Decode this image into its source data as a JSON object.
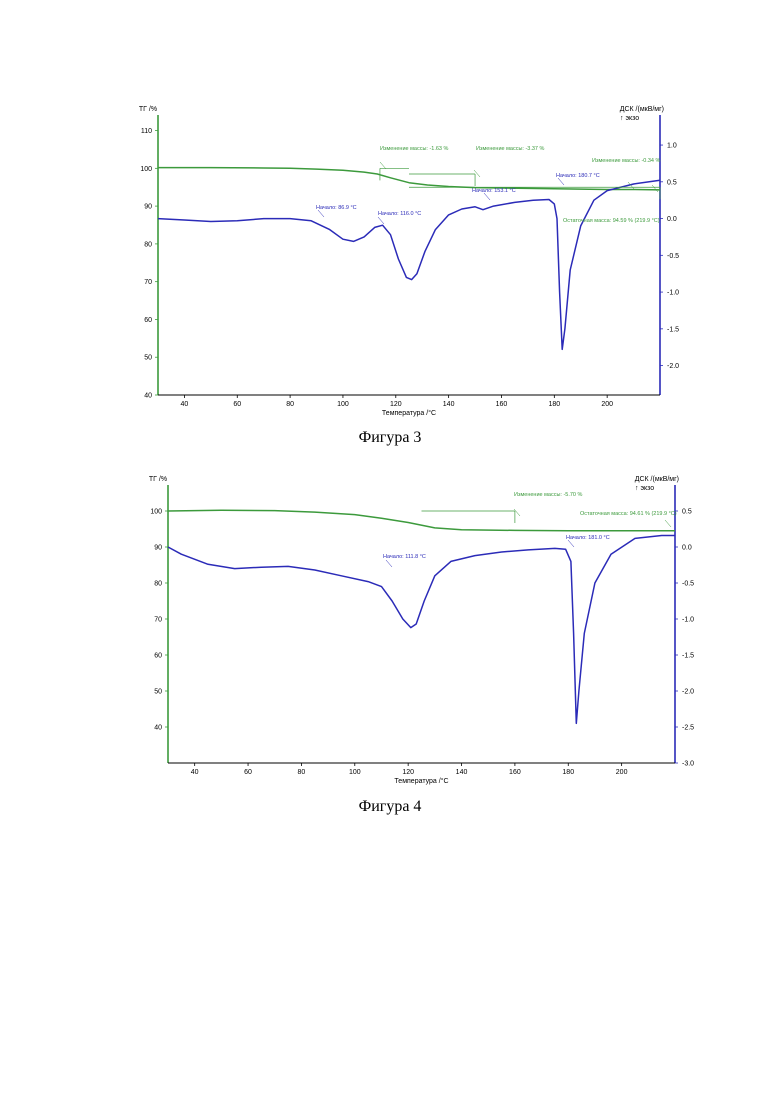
{
  "figures": [
    {
      "caption": "Фигура 3",
      "chart_data": {
        "type": "line",
        "title": "",
        "xlabel": "Температура /°C",
        "ylabel_left": "ТГ /%",
        "ylabel_right": "ДСК /(мкВ/мг)",
        "exo_label": "↑ экзо",
        "xlim": [
          30,
          220
        ],
        "ylim_left": [
          40,
          112
        ],
        "ylim_right": [
          -2.4,
          1.3
        ],
        "xticks": [
          40,
          60,
          80,
          100,
          120,
          140,
          160,
          180,
          200
        ],
        "yticks_left": [
          40,
          50,
          60,
          70,
          80,
          90,
          100,
          110
        ],
        "yticks_right": [
          -2.0,
          -1.5,
          -1.0,
          -0.5,
          0.0,
          0.5,
          1.0
        ],
        "grid": false,
        "tg_color": "#3c9a3c",
        "dsc_color": "#2b2bb8",
        "series": [
          {
            "name": "",
            "axis": "left",
            "points": [
              [
                30,
                100.2
              ],
              [
                50,
                100.2
              ],
              [
                70,
                100.1
              ],
              [
                80,
                100.0
              ],
              [
                90,
                99.8
              ],
              [
                100,
                99.5
              ],
              [
                108,
                99.0
              ],
              [
                113,
                98.5
              ],
              [
                118,
                97.5
              ],
              [
                125,
                96.2
              ],
              [
                132,
                95.6
              ],
              [
                140,
                95.2
              ],
              [
                150,
                94.9
              ],
              [
                160,
                94.8
              ],
              [
                170,
                94.7
              ],
              [
                180,
                94.6
              ],
              [
                190,
                94.5
              ],
              [
                200,
                94.4
              ],
              [
                210,
                94.4
              ],
              [
                220,
                94.3
              ]
            ]
          },
          {
            "name": "",
            "axis": "right",
            "points": [
              [
                30,
                0.0
              ],
              [
                40,
                -0.02
              ],
              [
                50,
                -0.04
              ],
              [
                60,
                -0.03
              ],
              [
                70,
                0.0
              ],
              [
                80,
                0.0
              ],
              [
                88,
                -0.03
              ],
              [
                95,
                -0.15
              ],
              [
                100,
                -0.28
              ],
              [
                104,
                -0.31
              ],
              [
                108,
                -0.25
              ],
              [
                112,
                -0.12
              ],
              [
                115,
                -0.09
              ],
              [
                118,
                -0.22
              ],
              [
                121,
                -0.55
              ],
              [
                124,
                -0.8
              ],
              [
                126,
                -0.83
              ],
              [
                128,
                -0.75
              ],
              [
                131,
                -0.45
              ],
              [
                135,
                -0.15
              ],
              [
                140,
                0.05
              ],
              [
                145,
                0.13
              ],
              [
                150,
                0.16
              ],
              [
                153,
                0.12
              ],
              [
                157,
                0.17
              ],
              [
                165,
                0.22
              ],
              [
                172,
                0.25
              ],
              [
                178,
                0.26
              ],
              [
                180,
                0.2
              ],
              [
                181,
                0.0
              ],
              [
                182,
                -1.0
              ],
              [
                183,
                -1.78
              ],
              [
                184,
                -1.5
              ],
              [
                186,
                -0.7
              ],
              [
                190,
                -0.1
              ],
              [
                195,
                0.25
              ],
              [
                200,
                0.38
              ],
              [
                210,
                0.47
              ],
              [
                220,
                0.52
              ]
            ]
          }
        ],
        "annotations": [
          {
            "text": "Изменение массы: -1.63 %",
            "series": "tg"
          },
          {
            "text": "Изменение массы: -3.37 %",
            "series": "tg"
          },
          {
            "text": "Изменение массы: -0.34 %",
            "series": "tg"
          },
          {
            "text": "Остаточная масса: 94.59 % (219.9 °C)",
            "series": "tg"
          },
          {
            "text": "Начало: 86.9 °C",
            "series": "dsc"
          },
          {
            "text": "Начало: 116.0 °C",
            "series": "dsc"
          },
          {
            "text": "Начало: 153.1 °C",
            "series": "dsc"
          },
          {
            "text": "Начало: 180.7 °C",
            "series": "dsc"
          }
        ]
      }
    },
    {
      "caption": "Фигура 4",
      "chart_data": {
        "type": "line",
        "title": "",
        "xlabel": "Температура /°C",
        "ylabel_left": "ТГ /%",
        "ylabel_right": "ДСК /(мкВ/мг)",
        "exo_label": "↑ экзо",
        "xlim": [
          30,
          220
        ],
        "ylim_left": [
          30,
          105
        ],
        "ylim_right": [
          -3.0,
          0.75
        ],
        "xticks": [
          40,
          60,
          80,
          100,
          120,
          140,
          160,
          180,
          200
        ],
        "yticks_left": [
          40,
          50,
          60,
          70,
          80,
          90,
          100
        ],
        "yticks_right": [
          -3.0,
          -2.5,
          -2.0,
          -1.5,
          -1.0,
          -0.5,
          0.0,
          0.5
        ],
        "grid": false,
        "tg_color": "#3c9a3c",
        "dsc_color": "#2b2bb8",
        "series": [
          {
            "name": "",
            "axis": "left",
            "points": [
              [
                30,
                100.0
              ],
              [
                50,
                100.2
              ],
              [
                70,
                100.1
              ],
              [
                85,
                99.7
              ],
              [
                100,
                99.0
              ],
              [
                110,
                98.0
              ],
              [
                120,
                96.8
              ],
              [
                130,
                95.3
              ],
              [
                140,
                94.8
              ],
              [
                160,
                94.6
              ],
              [
                180,
                94.5
              ],
              [
                200,
                94.5
              ],
              [
                220,
                94.5
              ]
            ]
          },
          {
            "name": "",
            "axis": "right",
            "points": [
              [
                30,
                0.0
              ],
              [
                35,
                -0.1
              ],
              [
                45,
                -0.24
              ],
              [
                55,
                -0.3
              ],
              [
                65,
                -0.28
              ],
              [
                75,
                -0.27
              ],
              [
                85,
                -0.32
              ],
              [
                95,
                -0.4
              ],
              [
                105,
                -0.48
              ],
              [
                110,
                -0.55
              ],
              [
                114,
                -0.75
              ],
              [
                118,
                -1.0
              ],
              [
                121,
                -1.12
              ],
              [
                123,
                -1.07
              ],
              [
                126,
                -0.75
              ],
              [
                130,
                -0.4
              ],
              [
                136,
                -0.2
              ],
              [
                145,
                -0.12
              ],
              [
                155,
                -0.07
              ],
              [
                165,
                -0.04
              ],
              [
                175,
                -0.02
              ],
              [
                179,
                -0.03
              ],
              [
                181,
                -0.2
              ],
              [
                182,
                -1.2
              ],
              [
                183,
                -2.45
              ],
              [
                184,
                -2.0
              ],
              [
                186,
                -1.2
              ],
              [
                190,
                -0.5
              ],
              [
                196,
                -0.1
              ],
              [
                205,
                0.12
              ],
              [
                215,
                0.16
              ],
              [
                220,
                0.16
              ]
            ]
          }
        ],
        "annotations": [
          {
            "text": "Изменение массы: -5.70 %",
            "series": "tg"
          },
          {
            "text": "Остаточная масса: 94.61 % (219.9 °C)",
            "series": "tg"
          },
          {
            "text": "Начало: 111.8 °C",
            "series": "dsc"
          },
          {
            "text": "Начало: 181.0 °C",
            "series": "dsc"
          }
        ]
      }
    }
  ]
}
